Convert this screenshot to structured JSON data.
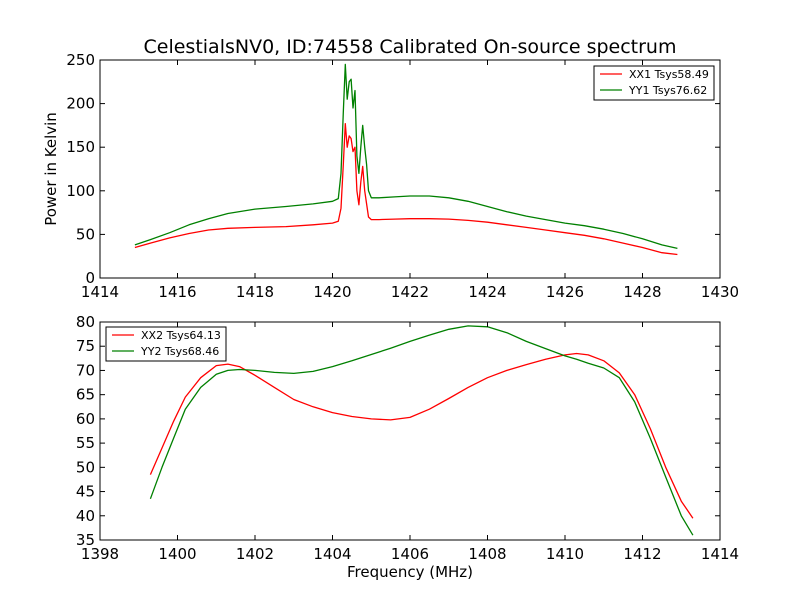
{
  "title": "CelestialsNV0, ID:74558 Calibrated On-source spectrum",
  "chart_data": [
    {
      "type": "line",
      "ylabel": "Power in Kelvin",
      "xlabel": "",
      "xlim": [
        1414,
        1430
      ],
      "ylim": [
        0,
        250
      ],
      "xticks": [
        "1414",
        "1416",
        "1418",
        "1420",
        "1422",
        "1424",
        "1426",
        "1428",
        "1430"
      ],
      "yticks": [
        "0",
        "50",
        "100",
        "150",
        "200",
        "250"
      ],
      "legend": "top-right",
      "grid": false,
      "series": [
        {
          "name": "XX1 Tsys58.49",
          "color": "#ff0000",
          "x": [
            1414.9,
            1415.3,
            1415.8,
            1416.3,
            1416.8,
            1417.3,
            1418.0,
            1418.8,
            1419.5,
            1420.0,
            1420.15,
            1420.22,
            1420.28,
            1420.33,
            1420.38,
            1420.43,
            1420.48,
            1420.53,
            1420.58,
            1420.63,
            1420.68,
            1420.73,
            1420.78,
            1420.83,
            1420.88,
            1420.93,
            1421.0,
            1421.2,
            1421.6,
            1422.0,
            1422.5,
            1423.0,
            1423.5,
            1424.0,
            1424.5,
            1425.0,
            1425.5,
            1426.0,
            1426.5,
            1427.0,
            1427.5,
            1428.0,
            1428.5,
            1428.9
          ],
          "y": [
            35,
            40,
            46,
            51,
            55,
            57,
            58,
            59,
            61,
            63,
            65,
            80,
            130,
            177,
            150,
            163,
            160,
            145,
            150,
            100,
            84,
            110,
            128,
            100,
            85,
            70,
            67,
            67,
            67.5,
            68,
            68,
            67.5,
            66,
            64,
            61,
            58,
            55,
            52,
            49,
            45,
            40,
            35,
            29,
            27
          ]
        },
        {
          "name": "YY1 Tsys76.62",
          "color": "#008000",
          "x": [
            1414.9,
            1415.3,
            1415.8,
            1416.3,
            1416.8,
            1417.3,
            1418.0,
            1418.8,
            1419.5,
            1420.0,
            1420.15,
            1420.22,
            1420.28,
            1420.33,
            1420.38,
            1420.43,
            1420.48,
            1420.53,
            1420.58,
            1420.63,
            1420.68,
            1420.73,
            1420.78,
            1420.83,
            1420.88,
            1420.93,
            1421.0,
            1421.2,
            1421.6,
            1422.0,
            1422.5,
            1423.0,
            1423.5,
            1424.0,
            1424.5,
            1425.0,
            1425.5,
            1426.0,
            1426.5,
            1427.0,
            1427.5,
            1428.0,
            1428.5,
            1428.9
          ],
          "y": [
            38,
            44,
            52,
            61,
            68,
            74,
            79,
            82,
            85,
            88,
            91,
            120,
            190,
            245,
            205,
            225,
            228,
            195,
            215,
            140,
            120,
            150,
            175,
            150,
            130,
            100,
            92,
            92,
            93,
            94,
            94,
            92,
            88,
            82,
            76,
            71,
            67,
            63,
            60,
            56,
            51,
            45,
            38,
            34
          ]
        }
      ]
    },
    {
      "type": "line",
      "ylabel": "",
      "xlabel": "Frequency (MHz)",
      "xlim": [
        1398,
        1414
      ],
      "ylim": [
        35,
        80
      ],
      "xticks": [
        "1398",
        "1400",
        "1402",
        "1404",
        "1406",
        "1408",
        "1410",
        "1412",
        "1414"
      ],
      "yticks": [
        "35",
        "40",
        "45",
        "50",
        "55",
        "60",
        "65",
        "70",
        "75",
        "80"
      ],
      "legend": "top-left",
      "grid": false,
      "series": [
        {
          "name": "XX2 Tsys64.13",
          "color": "#ff0000",
          "x": [
            1399.3,
            1399.6,
            1399.9,
            1400.2,
            1400.6,
            1401.0,
            1401.3,
            1401.6,
            1402.0,
            1402.5,
            1403.0,
            1403.5,
            1404.0,
            1404.5,
            1405.0,
            1405.5,
            1406.0,
            1406.5,
            1407.0,
            1407.5,
            1408.0,
            1408.5,
            1409.0,
            1409.5,
            1410.0,
            1410.3,
            1410.6,
            1411.0,
            1411.4,
            1411.8,
            1412.2,
            1412.6,
            1413.0,
            1413.3
          ],
          "y": [
            48.5,
            54,
            59.5,
            64.5,
            68.5,
            71,
            71.3,
            70.8,
            69,
            66.5,
            64,
            62.5,
            61.3,
            60.5,
            60,
            59.8,
            60.3,
            62,
            64.2,
            66.5,
            68.5,
            70,
            71.2,
            72.3,
            73.2,
            73.5,
            73.2,
            72,
            69.5,
            65,
            58,
            50,
            43,
            39.5
          ]
        },
        {
          "name": "YY2 Tsys68.46",
          "color": "#008000",
          "x": [
            1399.3,
            1399.6,
            1399.9,
            1400.2,
            1400.6,
            1401.0,
            1401.3,
            1401.6,
            1402.0,
            1402.5,
            1403.0,
            1403.5,
            1404.0,
            1404.5,
            1405.0,
            1405.5,
            1406.0,
            1406.5,
            1407.0,
            1407.5,
            1408.0,
            1408.5,
            1409.0,
            1409.5,
            1410.0,
            1410.3,
            1410.6,
            1411.0,
            1411.4,
            1411.8,
            1412.2,
            1412.6,
            1413.0,
            1413.3
          ],
          "y": [
            43.5,
            50,
            56,
            62,
            66.5,
            69.2,
            70,
            70.2,
            70,
            69.6,
            69.4,
            69.8,
            70.8,
            72,
            73.3,
            74.6,
            76,
            77.3,
            78.5,
            79.2,
            79,
            77.8,
            76,
            74.5,
            73,
            72.3,
            71.5,
            70.5,
            68.5,
            63.5,
            56,
            48,
            40,
            36
          ]
        }
      ]
    }
  ]
}
